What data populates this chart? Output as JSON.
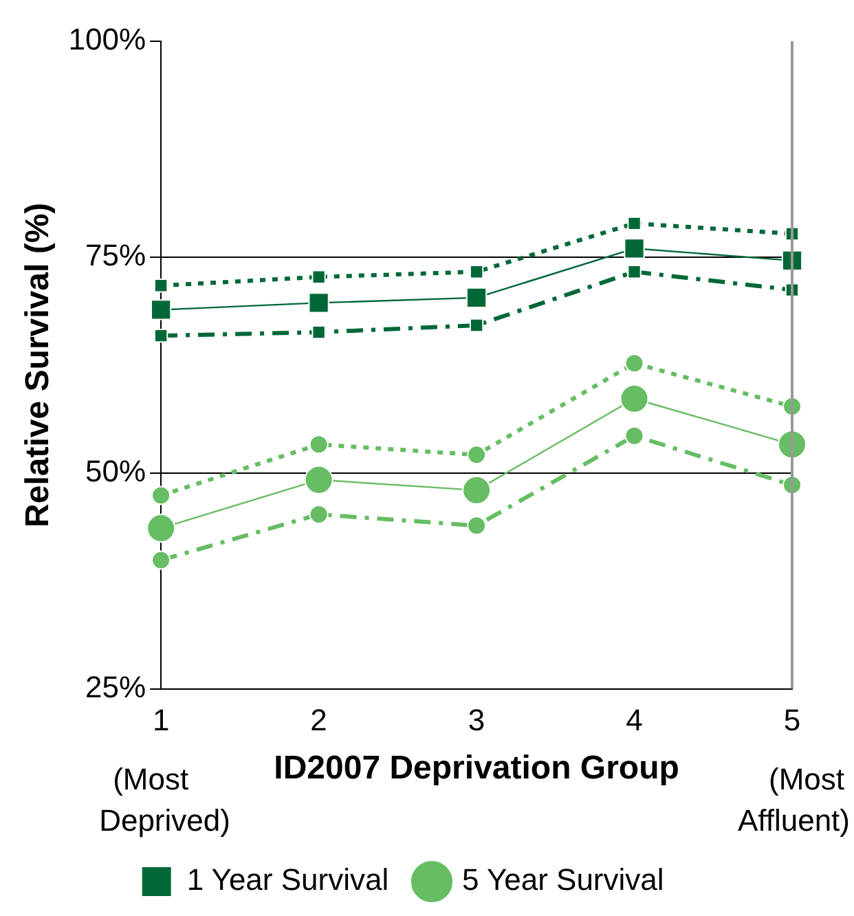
{
  "chart_data": {
    "type": "line",
    "xlabel": "ID2007 Deprivation Group",
    "ylabel": "Relative Survival (%)",
    "categories": [
      "1",
      "2",
      "3",
      "4",
      "5"
    ],
    "series": [
      {
        "name": "1 Year Survival",
        "color": "#006837",
        "marker": "square",
        "line_style": "solid",
        "values": [
          68.9,
          69.7,
          70.3,
          76.0,
          74.6
        ]
      },
      {
        "color": "#006837",
        "marker": "square",
        "line_style": "dotted",
        "values": [
          71.7,
          72.7,
          73.3,
          78.9,
          77.7
        ]
      },
      {
        "color": "#006837",
        "marker": "square",
        "line_style": "dashed",
        "values": [
          65.9,
          66.3,
          67.1,
          73.3,
          71.2
        ]
      },
      {
        "name": "5 Year Survival",
        "color": "#66bd63",
        "marker": "circle",
        "line_style": "solid",
        "values": [
          43.6,
          49.2,
          48.0,
          58.6,
          53.3
        ]
      },
      {
        "color": "#66bd63",
        "marker": "circle",
        "line_style": "dotted",
        "values": [
          47.4,
          53.3,
          52.1,
          62.7,
          57.7
        ]
      },
      {
        "color": "#66bd63",
        "marker": "circle",
        "line_style": "dashed",
        "values": [
          39.9,
          45.2,
          43.9,
          54.3,
          48.6
        ]
      }
    ],
    "ylim": [
      25,
      100
    ],
    "yticks": [
      {
        "value": 25,
        "label": "25%"
      },
      {
        "value": 50,
        "label": "50%"
      },
      {
        "value": 75,
        "label": "75%"
      },
      {
        "value": 100,
        "label": "100%"
      }
    ],
    "grid": "y",
    "legend": "bottom",
    "annotations": [
      "(Most Deprived)",
      "(Most Affluent)"
    ]
  }
}
